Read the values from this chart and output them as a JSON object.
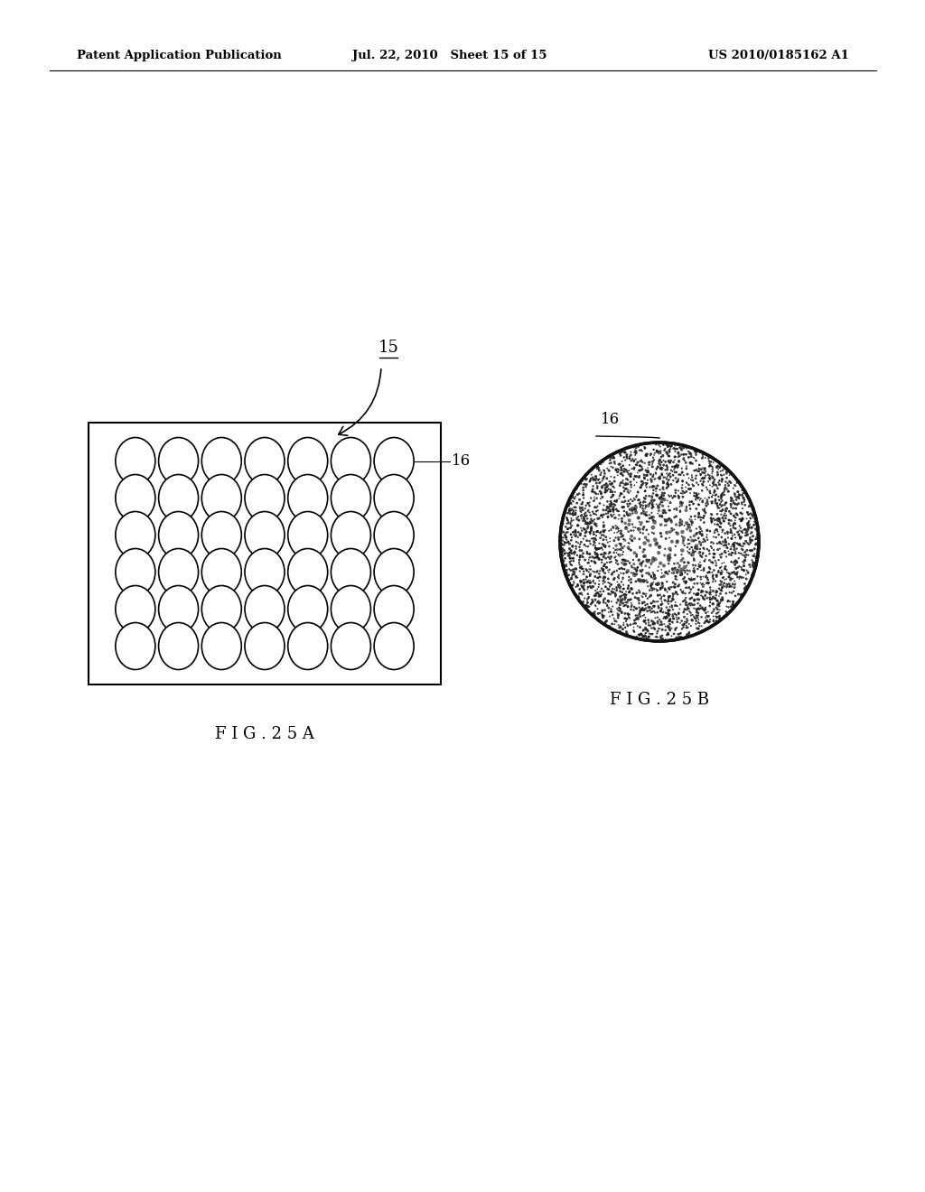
{
  "header_left": "Patent Application Publication",
  "header_mid": "Jul. 22, 2010   Sheet 15 of 15",
  "header_right": "US 2010/0185162 A1",
  "fig25a_label": "F I G . 2 5 A",
  "fig25b_label": "F I G . 2 5 B",
  "label_15": "15",
  "label_16_a": "16",
  "label_16_b": "16",
  "grid_cols": 7,
  "grid_rows": 6,
  "background": "#ffffff",
  "line_color": "#000000"
}
